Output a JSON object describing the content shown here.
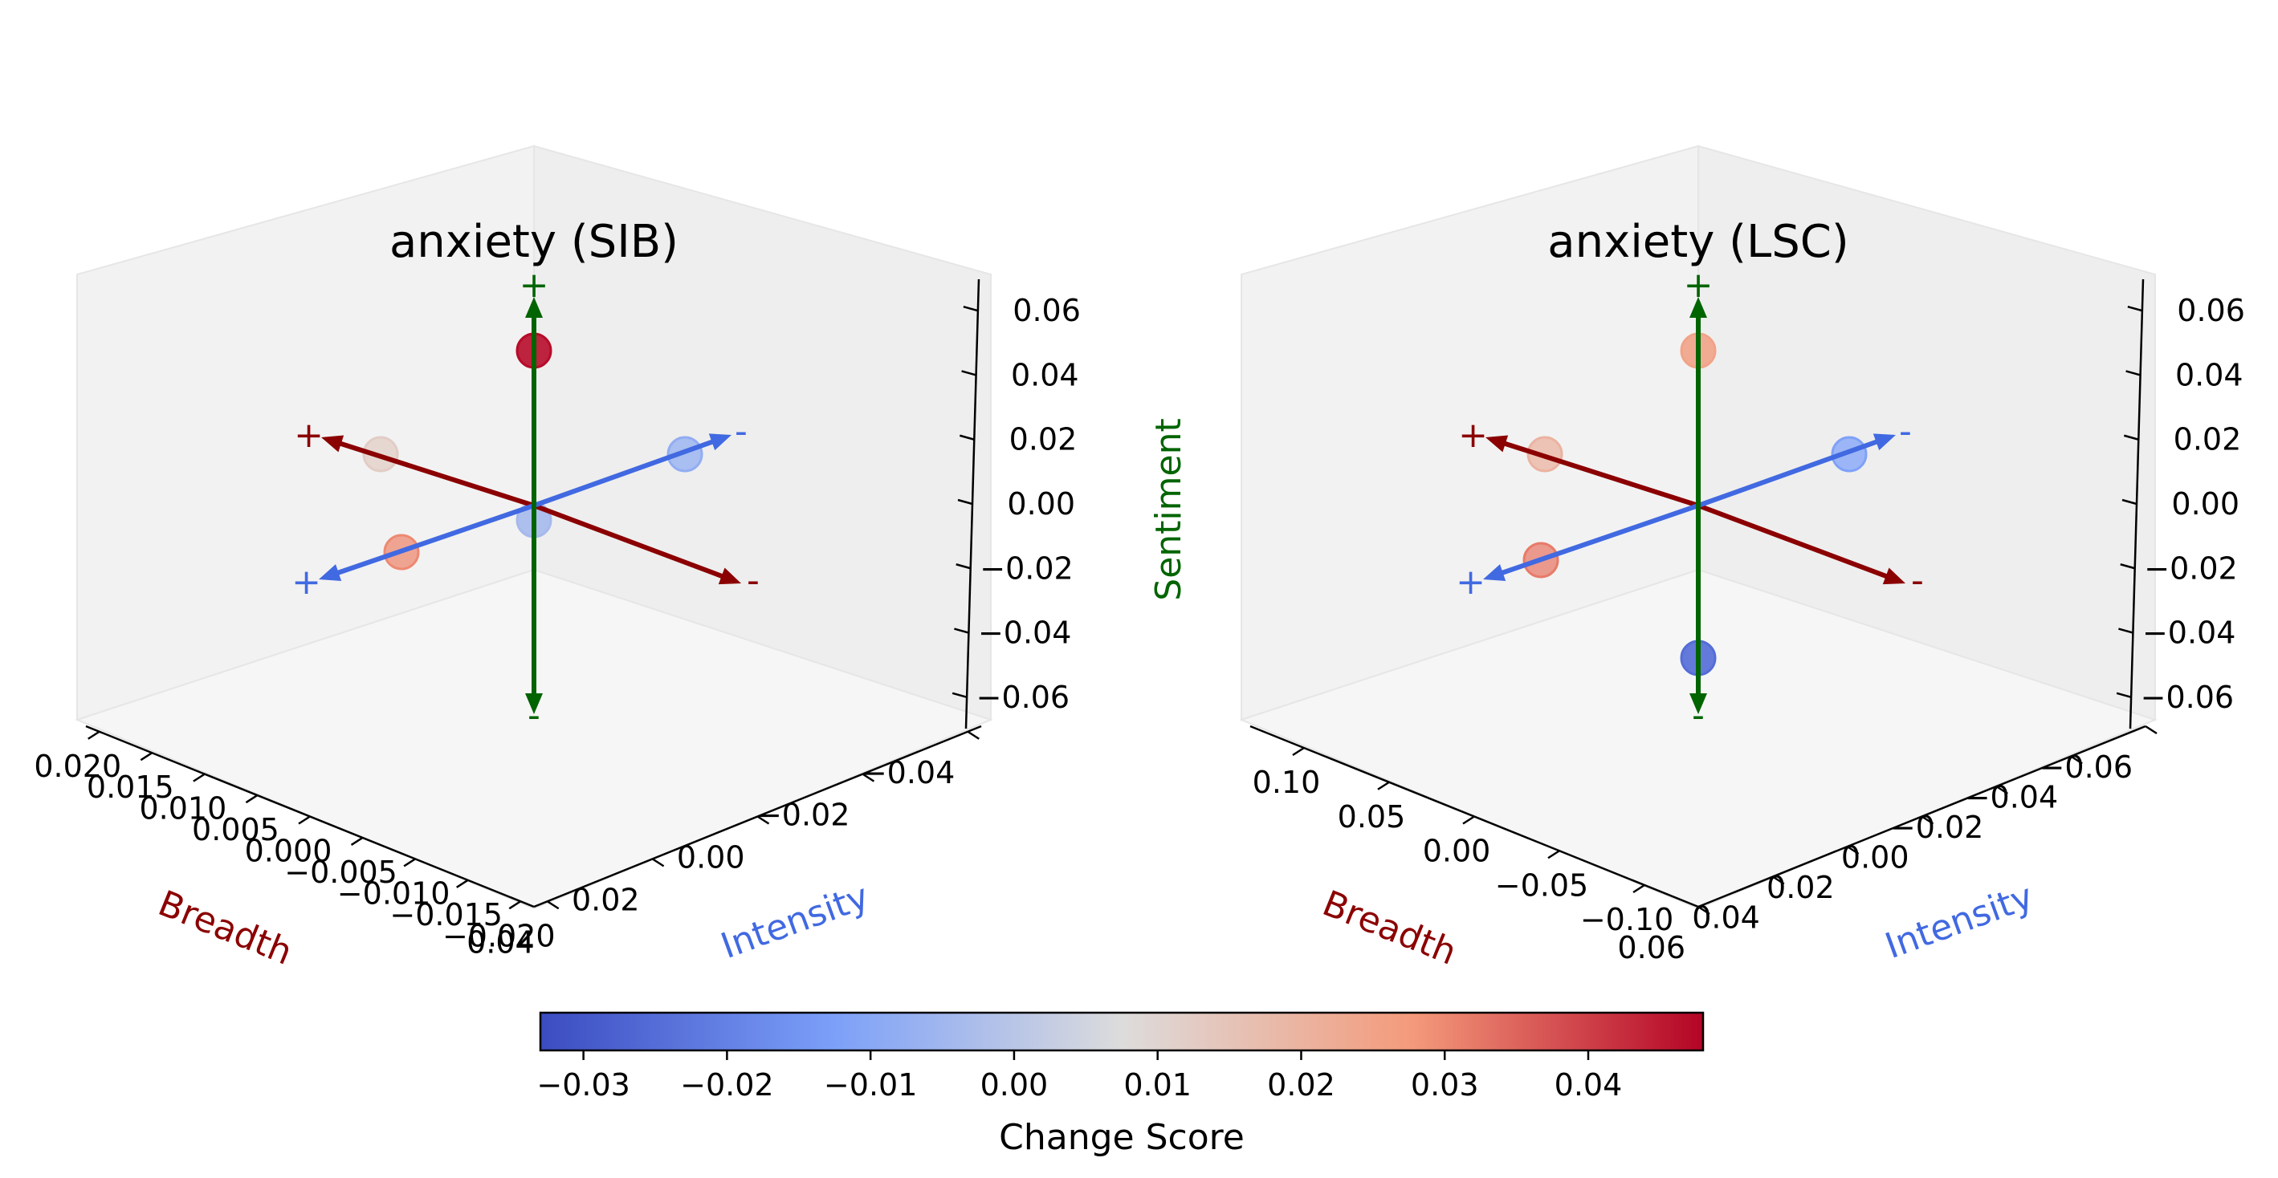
{
  "colors": {
    "breadth": "#8b0000",
    "intensity": "#4169e1",
    "sentiment": "#006400",
    "pane_side": "#f2f2f2",
    "pane_floor": "#f6f6f6",
    "pane_edge": "#e6e6e6"
  },
  "chart_data": [
    {
      "type": "scatter",
      "title": "anxiety (SIB)",
      "xlabel": "Breadth",
      "ylabel": "Intensity",
      "zlabel": "",
      "x_ticks": [
        "0.020",
        "0.015",
        "0.010",
        "0.005",
        "0.000",
        "−0.005",
        "−0.010",
        "−0.015",
        "−0.020"
      ],
      "y_ticks": [
        "0.04",
        "0.02",
        "0.00",
        "−0.02",
        "−0.04"
      ],
      "z_ticks": [
        "−0.06",
        "−0.04",
        "−0.02",
        "0.00",
        "0.02",
        "0.04",
        "0.06"
      ],
      "axis_signs": {
        "breadth_pos": "+",
        "breadth_neg": "-",
        "intensity_pos": "+",
        "intensity_neg": "-",
        "sentiment_pos": "+",
        "sentiment_neg": "-"
      },
      "points": [
        {
          "axis": "sentiment",
          "direction": "+",
          "change_score": 0.047
        },
        {
          "axis": "breadth",
          "direction": "+",
          "change_score": 0.012
        },
        {
          "axis": "intensity",
          "direction": "-",
          "change_score": -0.008
        },
        {
          "axis": "intensity",
          "direction": "+",
          "change_score": 0.03
        },
        {
          "axis": "center",
          "direction": "",
          "change_score": -0.004
        }
      ]
    },
    {
      "type": "scatter",
      "title": "anxiety (LSC)",
      "xlabel": "Breadth",
      "ylabel": "Intensity",
      "zlabel": "Sentiment",
      "x_ticks": [
        "0.10",
        "0.05",
        "0.00",
        "−0.05",
        "−0.10"
      ],
      "y_ticks": [
        "0.06",
        "0.04",
        "0.02",
        "0.00",
        "−0.02",
        "−0.04",
        "−0.06"
      ],
      "z_ticks": [
        "−0.06",
        "−0.04",
        "−0.02",
        "0.00",
        "0.02",
        "0.04",
        "0.06"
      ],
      "axis_signs": {
        "breadth_pos": "+",
        "breadth_neg": "-",
        "intensity_pos": "+",
        "intensity_neg": "-",
        "sentiment_pos": "+",
        "sentiment_neg": "-"
      },
      "points": [
        {
          "axis": "sentiment",
          "direction": "+",
          "change_score": 0.025
        },
        {
          "axis": "breadth",
          "direction": "+",
          "change_score": 0.02
        },
        {
          "axis": "intensity",
          "direction": "-",
          "change_score": -0.012
        },
        {
          "axis": "intensity",
          "direction": "+",
          "change_score": 0.032
        },
        {
          "axis": "sentiment",
          "direction": "-",
          "change_score": -0.025
        }
      ]
    }
  ],
  "colorbar": {
    "label": "Change Score",
    "min": -0.033,
    "max": 0.048,
    "ticks": [
      "−0.03",
      "−0.02",
      "−0.01",
      "0.00",
      "0.01",
      "0.02",
      "0.03",
      "0.04"
    ]
  }
}
